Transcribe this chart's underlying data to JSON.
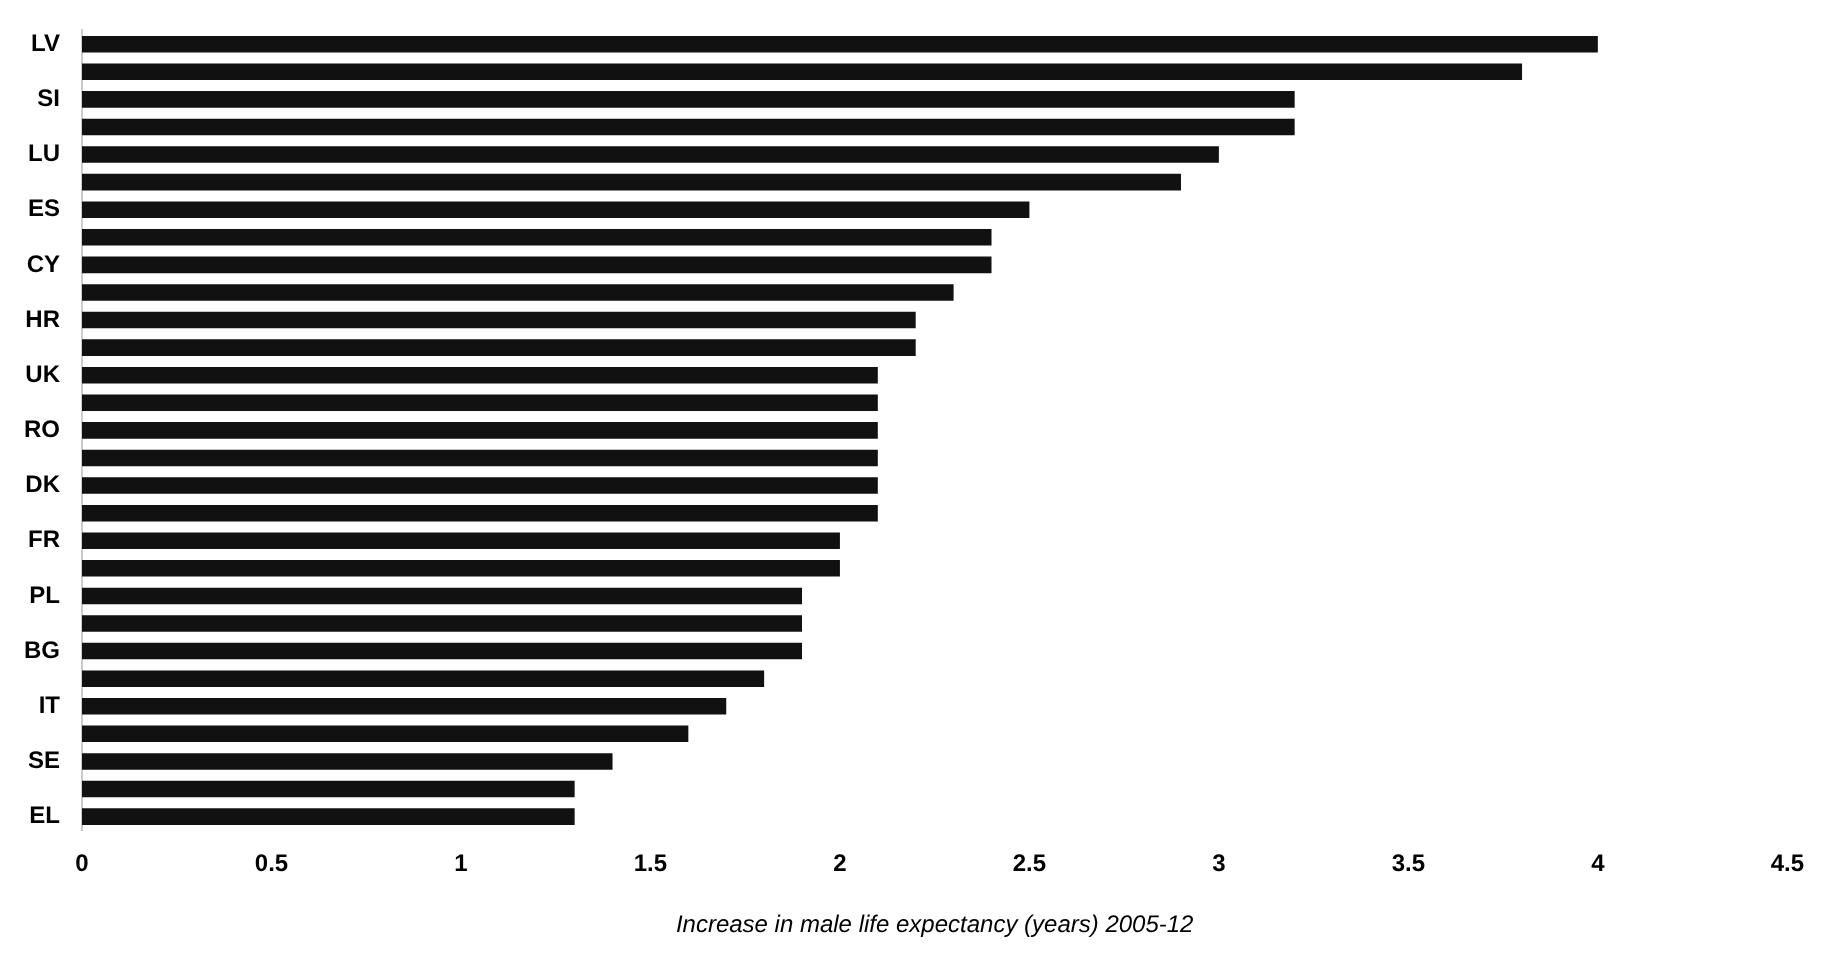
{
  "chart_data": {
    "type": "bar",
    "orientation": "horizontal",
    "xlabel": "Increase in male life expectancy (years) 2005-12",
    "categories": [
      "LV",
      null,
      "SI",
      null,
      "LU",
      null,
      "ES",
      null,
      "CY",
      null,
      "HR",
      null,
      "UK",
      null,
      "RO",
      null,
      "DK",
      null,
      "FR",
      null,
      "PL",
      null,
      "BG",
      null,
      "IT",
      null,
      "SE",
      null,
      "EL"
    ],
    "values": [
      4.0,
      3.8,
      3.2,
      3.2,
      3.0,
      2.9,
      2.5,
      2.4,
      2.4,
      2.3,
      2.2,
      2.2,
      2.1,
      2.1,
      2.1,
      2.1,
      2.1,
      2.1,
      2.0,
      2.0,
      1.9,
      1.9,
      1.9,
      1.8,
      1.7,
      1.6,
      1.4,
      1.3,
      1.3
    ],
    "color": "#111111",
    "xlim": [
      0,
      4.5
    ],
    "xticks": [
      0,
      0.5,
      1,
      1.5,
      2,
      2.5,
      3,
      3.5,
      4,
      4.5
    ],
    "grid": false,
    "legend": false
  }
}
